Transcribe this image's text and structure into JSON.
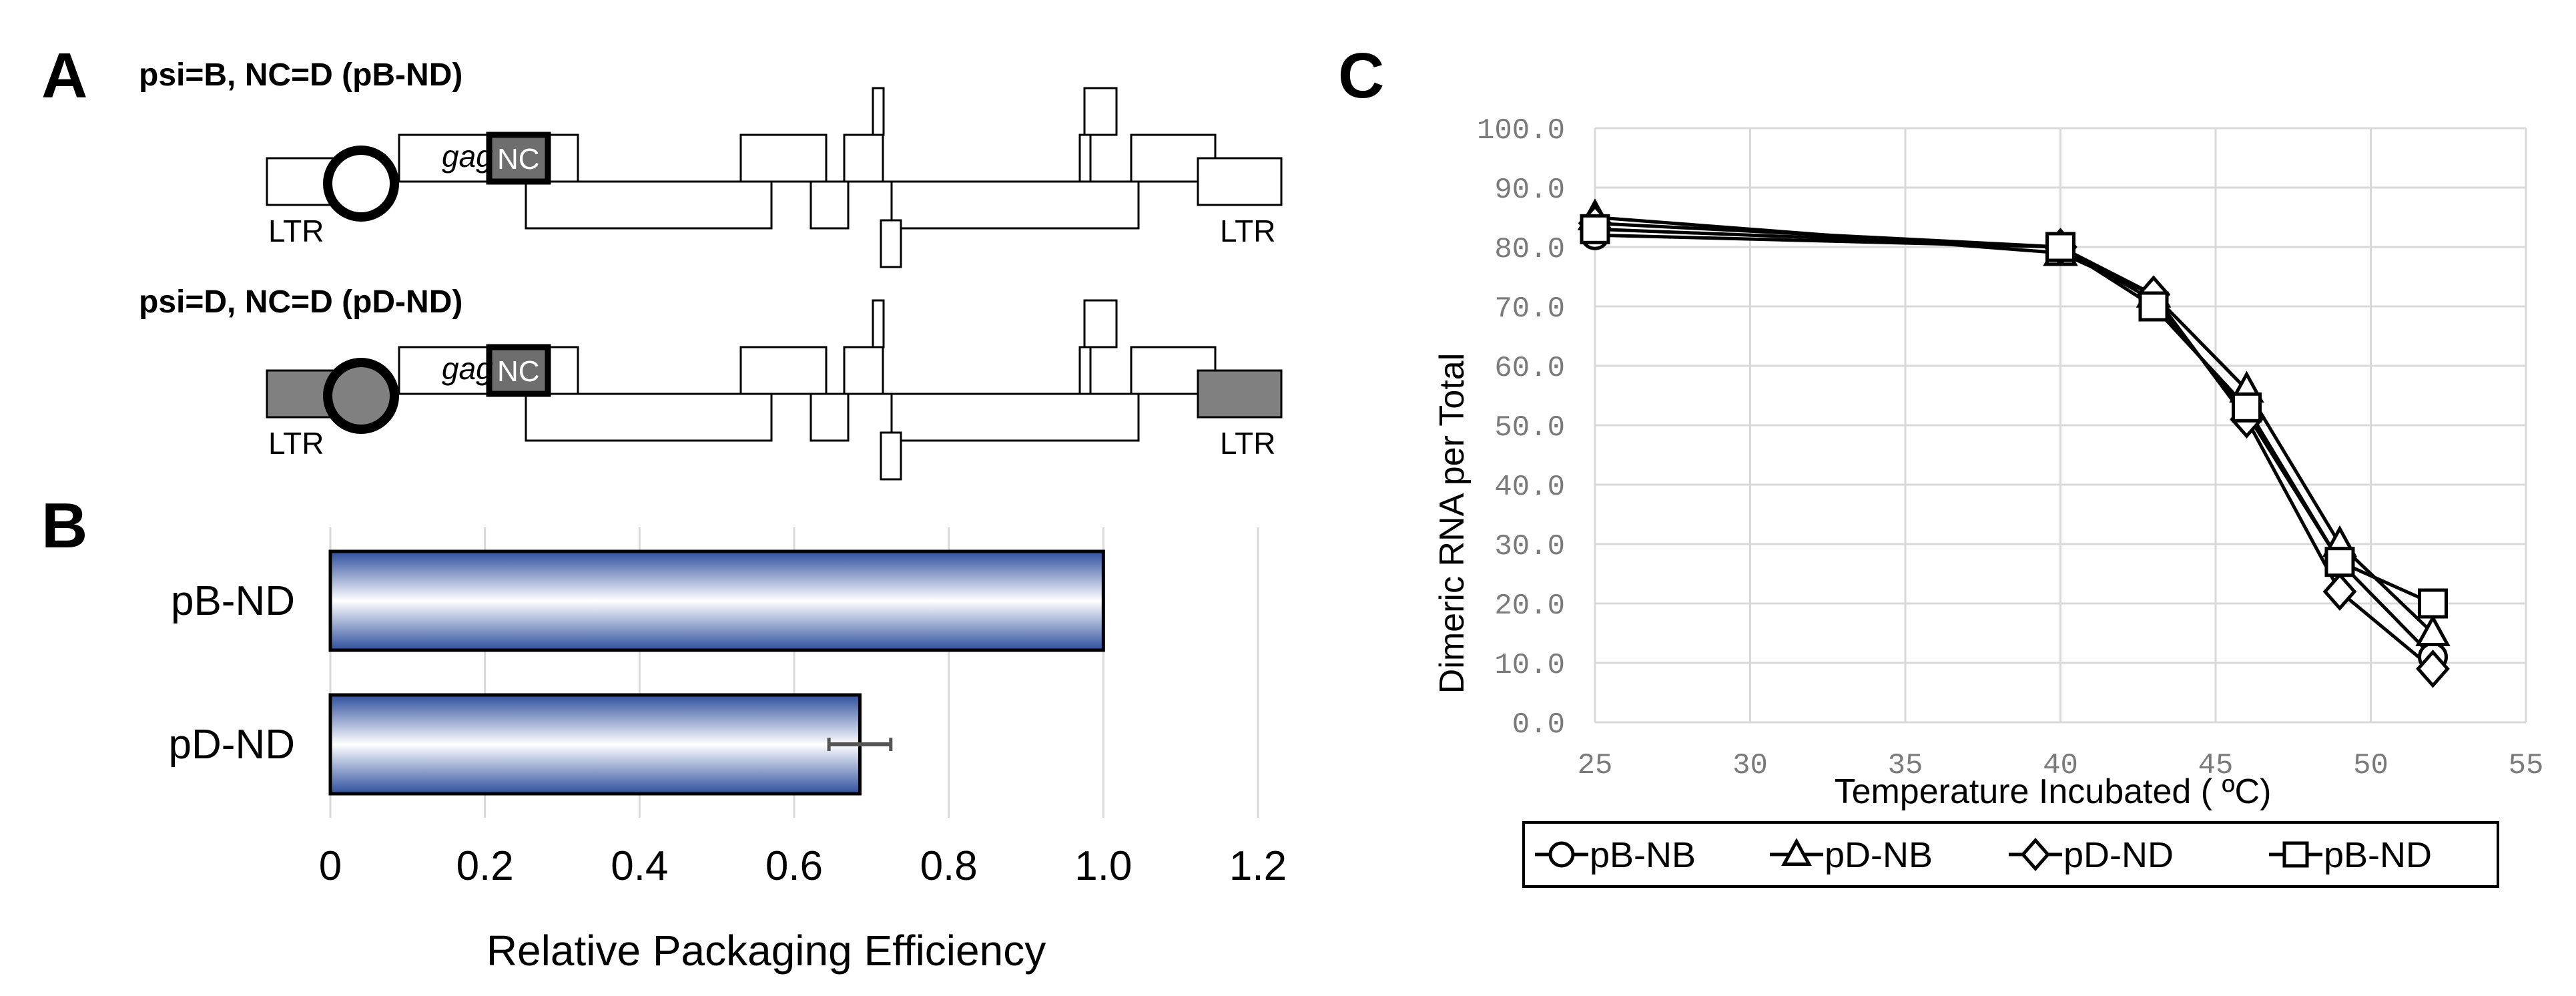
{
  "panelA": {
    "letter": "A",
    "constructs": [
      {
        "title": "psi=B, NC=D (pB-ND)",
        "ltr_left": "LTR",
        "ltr_right": "LTR",
        "gag": "gag",
        "nc": "NC",
        "ltr_fill": "#ffffff",
        "psi_fill": "#ffffff"
      },
      {
        "title": "psi=D, NC=D (pD-ND)",
        "ltr_left": "LTR",
        "ltr_right": "LTR",
        "gag": "gag",
        "nc": "NC",
        "ltr_fill": "#808080",
        "psi_fill": "#808080"
      }
    ]
  },
  "panelB": {
    "letter": "B",
    "chart_data": {
      "type": "bar",
      "orientation": "horizontal",
      "categories": [
        "pB-ND",
        "pD-ND"
      ],
      "values": [
        1.0,
        0.685
      ],
      "errors": [
        0.0,
        0.04
      ],
      "xlabel": "Relative Packaging Efficiency",
      "xlim": [
        0,
        1.2
      ],
      "xticks": [
        "0",
        "0.2",
        "0.4",
        "0.6",
        "0.8",
        "1.0",
        "1.2"
      ],
      "xtick_values": [
        0,
        0.2,
        0.4,
        0.6,
        0.8,
        1.0,
        1.2
      ],
      "grid": true,
      "bar_colors": {
        "edge": "#2e4f9e",
        "center": "#ffffff"
      }
    }
  },
  "panelC": {
    "letter": "C",
    "chart_data": {
      "type": "line",
      "x": [
        25,
        40,
        43,
        46,
        49,
        52
      ],
      "series": [
        {
          "name": "pB-NB",
          "marker": "circle",
          "values": [
            82,
            80,
            71,
            52,
            27,
            11
          ]
        },
        {
          "name": "pD-NB",
          "marker": "triangle",
          "values": [
            85,
            79,
            72,
            56,
            30,
            15
          ]
        },
        {
          "name": "pD-ND",
          "marker": "diamond",
          "values": [
            84,
            80,
            72,
            51,
            22,
            9
          ]
        },
        {
          "name": "pB-ND",
          "marker": "square",
          "values": [
            83,
            80,
            70,
            53,
            27,
            20
          ]
        }
      ],
      "xlabel": "Temperature Incubated ( ºC)",
      "ylabel": "Dimeric RNA per Total",
      "xlim": [
        25,
        55
      ],
      "ylim": [
        0,
        100
      ],
      "xticks": [
        "25",
        "30",
        "35",
        "40",
        "45",
        "50",
        "55"
      ],
      "xtick_values": [
        25,
        30,
        35,
        40,
        45,
        50,
        55
      ],
      "yticks": [
        "0.0",
        "10.0",
        "20.0",
        "30.0",
        "40.0",
        "50.0",
        "60.0",
        "70.0",
        "80.0",
        "90.0",
        "100.0"
      ],
      "ytick_values": [
        0,
        10,
        20,
        30,
        40,
        50,
        60,
        70,
        80,
        90,
        100
      ],
      "grid": true,
      "legend_position": "bottom"
    }
  }
}
